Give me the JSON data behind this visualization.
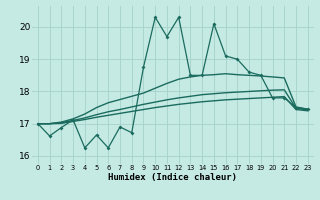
{
  "xlabel": "Humidex (Indice chaleur)",
  "bg_color": "#c5eae4",
  "grid_color": "#aad4ce",
  "line_color": "#1a6b5e",
  "xlim": [
    -0.5,
    23.5
  ],
  "ylim": [
    15.75,
    20.65
  ],
  "yticks": [
    16,
    17,
    18,
    19,
    20
  ],
  "xtick_labels": [
    "0",
    "1",
    "2",
    "3",
    "4",
    "5",
    "6",
    "7",
    "8",
    "9",
    "10",
    "11",
    "12",
    "13",
    "14",
    "15",
    "16",
    "17",
    "18",
    "19",
    "20",
    "21",
    "22",
    "23"
  ],
  "zigzag_y": [
    17.0,
    16.62,
    16.88,
    17.12,
    16.25,
    16.65,
    16.25,
    16.9,
    16.72,
    18.75,
    20.3,
    19.7,
    20.3,
    18.5,
    18.5,
    20.1,
    19.1,
    19.0,
    18.6,
    18.5,
    17.8,
    17.8,
    17.5,
    17.45
  ],
  "curve_top_y": [
    17.0,
    17.0,
    17.05,
    17.15,
    17.3,
    17.5,
    17.65,
    17.75,
    17.85,
    17.95,
    18.1,
    18.25,
    18.38,
    18.45,
    18.5,
    18.52,
    18.55,
    18.52,
    18.5,
    18.48,
    18.45,
    18.42,
    17.52,
    17.45
  ],
  "curve_mid_y": [
    17.0,
    17.0,
    17.03,
    17.1,
    17.18,
    17.28,
    17.37,
    17.44,
    17.52,
    17.6,
    17.67,
    17.74,
    17.8,
    17.85,
    17.9,
    17.93,
    17.96,
    17.98,
    18.0,
    18.02,
    18.04,
    18.05,
    17.48,
    17.43
  ],
  "curve_low_y": [
    17.0,
    17.0,
    17.01,
    17.07,
    17.13,
    17.2,
    17.26,
    17.32,
    17.38,
    17.44,
    17.5,
    17.55,
    17.6,
    17.64,
    17.68,
    17.71,
    17.74,
    17.76,
    17.78,
    17.8,
    17.82,
    17.84,
    17.44,
    17.4
  ]
}
